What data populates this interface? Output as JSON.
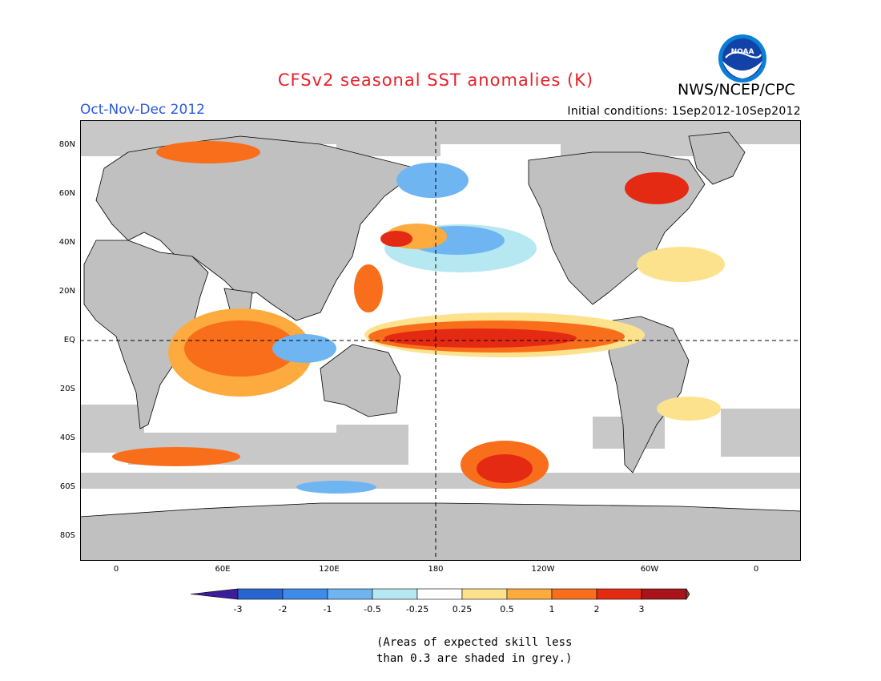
{
  "title": "CFSv2 seasonal SST anomalies (K)",
  "agency": "NWS/NCEP/CPC",
  "logo_text": "NOAA",
  "season": "Oct-Nov-Dec 2012",
  "initial_conditions": "Initial conditions: 1Sep2012-10Sep2012",
  "lat_labels": [
    "80N",
    "60N",
    "40N",
    "20N",
    "EQ",
    "20S",
    "40S",
    "60S",
    "80S"
  ],
  "lon_labels": [
    "0",
    "60E",
    "120E",
    "180",
    "120W",
    "60W",
    "0"
  ],
  "colorbar": {
    "colors": [
      "#3c1e9b",
      "#2866cf",
      "#3f8bea",
      "#6fb5f2",
      "#b6e8f2",
      "#ffffff",
      "#fde28d",
      "#fdab3f",
      "#f96e1b",
      "#e52a14",
      "#a8141a",
      "#754a3a"
    ],
    "labels": [
      "-3",
      "-2",
      "-1",
      "-0.5",
      "-0.25",
      "0.25",
      "0.5",
      "1",
      "2",
      "3"
    ]
  },
  "note_line1": "(Areas of expected skill less",
  "note_line2": "than 0.3 are shaded in grey.)"
}
